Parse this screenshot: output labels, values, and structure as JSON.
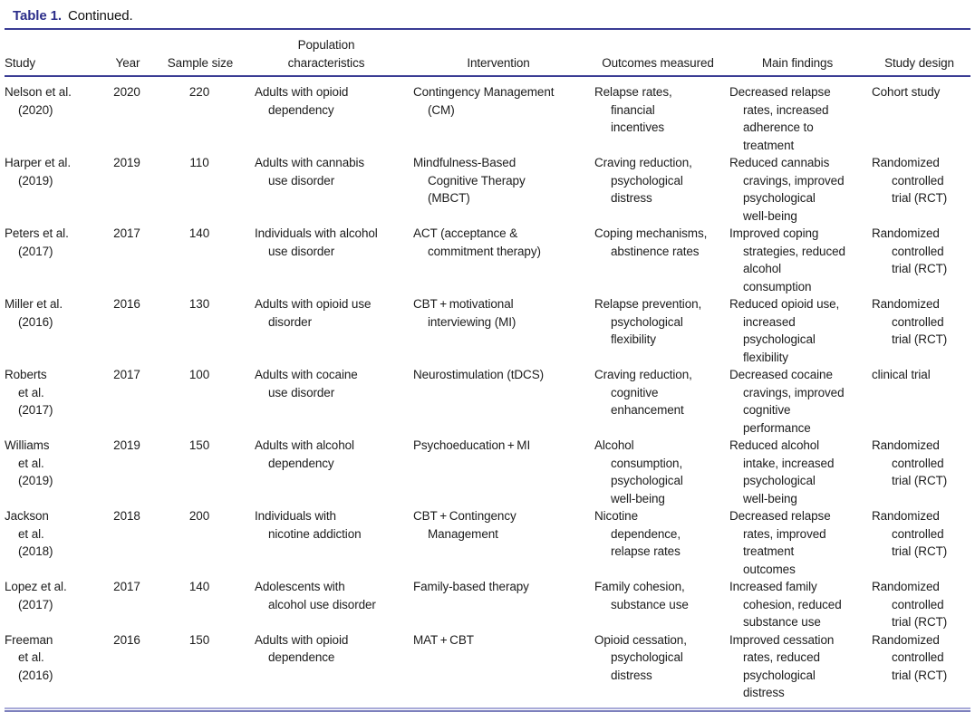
{
  "caption": {
    "label": "Table 1.",
    "rest": "Continued."
  },
  "colors": {
    "title_accent": "#2c2e8a",
    "rule_dark": "#3a3c94",
    "rule_bottom_light": "#a8aad8",
    "rule_bottom_dark": "#7d80bd",
    "text": "#1c1c1c"
  },
  "table": {
    "columns": [
      "Study",
      "Year",
      "Sample size",
      "Population\ncharacteristics",
      "Intervention",
      "Outcomes measured",
      "Main findings",
      "Study design"
    ],
    "rows": [
      [
        "Nelson et al.\n(2020)",
        "2020",
        "220",
        "Adults with opioid\ndependency",
        "Contingency Management\n(CM)",
        "Relapse rates,\nfinancial\nincentives",
        "Decreased relapse\nrates, increased\nadherence to\ntreatment",
        "Cohort study"
      ],
      [
        "Harper et al.\n(2019)",
        "2019",
        "110",
        "Adults with cannabis\nuse disorder",
        "Mindfulness-Based\nCognitive Therapy\n(MBCT)",
        "Craving reduction,\npsychological\ndistress",
        "Reduced cannabis\ncravings, improved\npsychological\nwell-being",
        "Randomized\ncontrolled\ntrial (RCT)"
      ],
      [
        "Peters et al.\n(2017)",
        "2017",
        "140",
        "Individuals with alcohol\nuse disorder",
        "ACT (acceptance &\ncommitment therapy)",
        "Coping mechanisms,\nabstinence rates",
        "Improved coping\nstrategies, reduced\nalcohol\nconsumption",
        "Randomized\ncontrolled\ntrial (RCT)"
      ],
      [
        "Miller et al.\n(2016)",
        "2016",
        "130",
        "Adults with opioid use\ndisorder",
        "CBT + motivational\ninterviewing (MI)",
        "Relapse prevention,\npsychological\nflexibility",
        "Reduced opioid use,\nincreased\npsychological\nflexibility",
        "Randomized\ncontrolled\ntrial (RCT)"
      ],
      [
        "Roberts\net al.\n(2017)",
        "2017",
        "100",
        "Adults with cocaine\nuse disorder",
        "Neurostimulation (tDCS)",
        "Craving reduction,\ncognitive\nenhancement",
        "Decreased cocaine\ncravings, improved\ncognitive\nperformance",
        "clinical trial"
      ],
      [
        "Williams\net al.\n(2019)",
        "2019",
        "150",
        "Adults with alcohol\ndependency",
        "Psychoeducation + MI",
        "Alcohol\nconsumption,\npsychological\nwell-being",
        "Reduced alcohol\nintake, increased\npsychological\nwell-being",
        "Randomized\ncontrolled\ntrial (RCT)"
      ],
      [
        "Jackson\net al.\n(2018)",
        "2018",
        "200",
        "Individuals with\nnicotine addiction",
        "CBT + Contingency\nManagement",
        "Nicotine\ndependence,\nrelapse rates",
        "Decreased relapse\nrates, improved\ntreatment\noutcomes",
        "Randomized\ncontrolled\ntrial (RCT)"
      ],
      [
        "Lopez et al.\n(2017)",
        "2017",
        "140",
        "Adolescents with\nalcohol use disorder",
        "Family-based therapy",
        "Family cohesion,\nsubstance use",
        "Increased family\ncohesion, reduced\nsubstance use",
        "Randomized\ncontrolled\ntrial (RCT)"
      ],
      [
        "Freeman\net al.\n(2016)",
        "2016",
        "150",
        "Adults with opioid\ndependence",
        "MAT + CBT",
        "Opioid cessation,\npsychological\ndistress",
        "Improved cessation\nrates, reduced\npsychological\ndistress",
        "Randomized\ncontrolled\ntrial (RCT)"
      ]
    ]
  }
}
